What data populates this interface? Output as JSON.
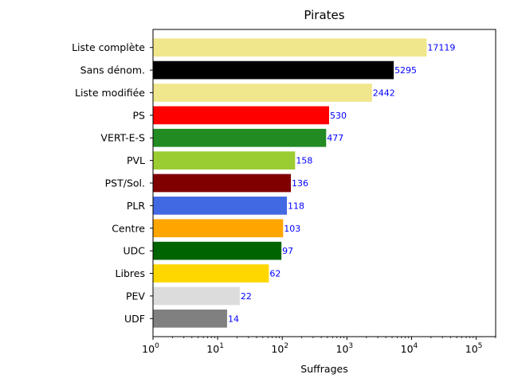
{
  "chart_data": {
    "type": "bar",
    "orientation": "horizontal",
    "title": "Pirates",
    "xlabel": "Suffrages",
    "ylabel": "",
    "xscale": "log",
    "xlim": [
      1,
      200000
    ],
    "x_ticks": [
      {
        "base": "10",
        "exp": "0"
      },
      {
        "base": "10",
        "exp": "1"
      },
      {
        "base": "10",
        "exp": "2"
      },
      {
        "base": "10",
        "exp": "3"
      },
      {
        "base": "10",
        "exp": "4"
      },
      {
        "base": "10",
        "exp": "5"
      }
    ],
    "grid": false,
    "categories": [
      "Liste complète",
      "Sans dénom.",
      "Liste modifiée",
      "PS",
      "VERT-E-S",
      "PVL",
      "PST/Sol.",
      "PLR",
      "Centre",
      "UDC",
      "Libres",
      "PEV",
      "UDF"
    ],
    "values": [
      17119,
      5295,
      2442,
      530,
      477,
      158,
      136,
      118,
      103,
      97,
      62,
      22,
      14
    ],
    "colors": [
      "#f0e68c",
      "#000000",
      "#f0e68c",
      "#ff0000",
      "#228b22",
      "#9acd32",
      "#800000",
      "#4169e1",
      "#ffa500",
      "#006400",
      "#ffd700",
      "#dcdcdc",
      "#808080"
    ],
    "data_label_color": "#0000ff"
  }
}
